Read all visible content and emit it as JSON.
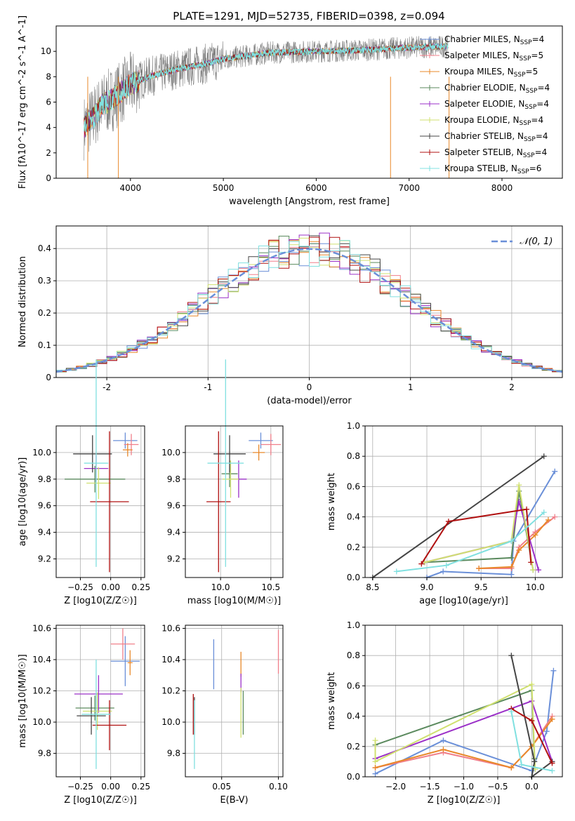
{
  "figure": {
    "title": "PLATE=1291, MJD=52735, FIBERID=0398, z=0.094"
  },
  "colors": {
    "chabrier_miles": "#6a8fd8",
    "salpeter_miles": "#f07f8a",
    "kroupa_miles": "#e8882a",
    "chabrier_elodie": "#5b8a5e",
    "salpeter_elodie": "#9b30c8",
    "kroupa_elodie": "#d0e070",
    "chabrier_stelib": "#444444",
    "salpeter_stelib": "#b01010",
    "kroupa_stelib": "#80e0e0",
    "data": "#808080",
    "normal": "#6a8fd8"
  },
  "chart_data": [
    {
      "id": "spectrum",
      "type": "line",
      "title": "PLATE=1291, MJD=52735, FIBERID=0398, z=0.094",
      "xlabel": "wavelength [Angstrom, rest frame]",
      "ylabel": "Flux [fλ10^-17 erg cm^-2 s^-1 A^-1]",
      "xlim": [
        3200,
        8650
      ],
      "ylim": [
        0,
        12
      ],
      "xticks": [
        "4000",
        "5000",
        "6000",
        "7000",
        "8000"
      ],
      "yticks": [
        "0",
        "2",
        "4",
        "6",
        "8",
        "10"
      ],
      "legend_loc": "right",
      "legend": [
        "Chabrier MILES, NSSP=4",
        "Salpeter MILES, NSSP=5",
        "Kroupa MILES, NSSP=5",
        "Chabrier ELODIE, NSSP=4",
        "Salpeter ELODIE, NSSP=4",
        "Kroupa ELODIE, NSSP=4",
        "Chabrier STELIB, NSSP=4",
        "Salpeter STELIB, NSSP=4",
        "Kroupa STELIB, NSSP=6"
      ],
      "continuum": {
        "x": [
          3500,
          3600,
          3700,
          3800,
          3900,
          4000,
          4200,
          4500,
          4800,
          5000,
          5200,
          5500,
          6000,
          6500,
          7000,
          7400
        ],
        "y": [
          4.0,
          4.8,
          5.8,
          6.2,
          6.8,
          7.4,
          8.0,
          8.6,
          9.0,
          9.4,
          9.6,
          9.9,
          10.0,
          10.1,
          10.3,
          10.4
        ]
      },
      "dips": [
        {
          "x": 3540,
          "y": 0
        },
        {
          "x": 3870,
          "y": 0
        },
        {
          "x": 6800,
          "y": 0
        },
        {
          "x": 7430,
          "y": 0
        }
      ]
    },
    {
      "id": "residuals",
      "type": "line",
      "xlabel": "(data-model)/error",
      "ylabel": "Normed distribution",
      "xlim": [
        -2.5,
        2.5
      ],
      "ylim": [
        0,
        0.47
      ],
      "xticks": [
        -2,
        -1,
        0,
        1,
        2
      ],
      "yticks": [
        0.0,
        0.1,
        0.2,
        0.3,
        0.4
      ],
      "legend": [
        "𝒩(0, 1)"
      ],
      "legend_loc": "top-right",
      "grid": true
    },
    {
      "id": "age_vs_z",
      "type": "scatter",
      "xlabel": "Z [log10(Z/Z☉)]",
      "ylabel": "age [log10(age/yr)]",
      "xlim": [
        -0.45,
        0.28
      ],
      "ylim": [
        9.06,
        10.2
      ],
      "xticks": [
        "−0.25",
        "0.00",
        "0.25"
      ],
      "yticks": [
        "9.2",
        "9.4",
        "9.6",
        "9.8",
        "10.0"
      ],
      "grid": true,
      "points": [
        {
          "series": "chabrier_miles",
          "x": 0.12,
          "y": 10.09,
          "xerr": 0.1,
          "yerr": 0.06
        },
        {
          "series": "salpeter_miles",
          "x": 0.17,
          "y": 10.06,
          "xerr": 0.06,
          "yerr": 0.08
        },
        {
          "series": "kroupa_miles",
          "x": 0.14,
          "y": 10.02,
          "xerr": 0.04,
          "yerr": 0.05
        },
        {
          "series": "chabrier_elodie",
          "x": -0.13,
          "y": 9.8,
          "xerr": 0.25,
          "yerr": 0.1
        },
        {
          "series": "salpeter_elodie",
          "x": -0.12,
          "y": 9.88,
          "xerr": 0.1,
          "yerr": 0.1
        },
        {
          "series": "kroupa_elodie",
          "x": -0.1,
          "y": 9.77,
          "xerr": 0.1,
          "yerr": 0.12
        },
        {
          "series": "chabrier_stelib",
          "x": -0.15,
          "y": 9.99,
          "xerr": 0.16,
          "yerr": 0.14
        },
        {
          "series": "salpeter_stelib",
          "x": -0.01,
          "y": 9.63,
          "xerr": 0.16,
          "yerr": 0.53
        },
        {
          "series": "kroupa_stelib",
          "x": -0.12,
          "y": 9.92,
          "xerr": 0.1,
          "yerr": 0.78
        }
      ]
    },
    {
      "id": "age_vs_mass",
      "type": "scatter",
      "xlabel": "mass [log10(M/M☉)]",
      "ylabel": "",
      "xlim": [
        9.65,
        10.62
      ],
      "ylim": [
        9.06,
        10.2
      ],
      "xticks": [
        "10.0",
        "10.5"
      ],
      "yticks": [
        "9.2",
        "9.4",
        "9.6",
        "9.8",
        "10.0"
      ],
      "grid": true,
      "points": [
        {
          "series": "chabrier_miles",
          "x": 10.4,
          "y": 10.09,
          "xerr": 0.12,
          "yerr": 0.06
        },
        {
          "series": "salpeter_miles",
          "x": 10.5,
          "y": 10.06,
          "xerr": 0.1,
          "yerr": 0.08
        },
        {
          "series": "kroupa_miles",
          "x": 10.38,
          "y": 10.0,
          "xerr": 0.06,
          "yerr": 0.06
        },
        {
          "series": "chabrier_elodie",
          "x": 10.09,
          "y": 9.84,
          "xerr": 0.08,
          "yerr": 0.1
        },
        {
          "series": "salpeter_elodie",
          "x": 10.18,
          "y": 9.8,
          "xerr": 0.08,
          "yerr": 0.14
        },
        {
          "series": "kroupa_elodie",
          "x": 10.1,
          "y": 9.8,
          "xerr": 0.08,
          "yerr": 0.14
        },
        {
          "series": "chabrier_stelib",
          "x": 10.09,
          "y": 9.99,
          "xerr": 0.16,
          "yerr": 0.14
        },
        {
          "series": "salpeter_stelib",
          "x": 9.98,
          "y": 9.63,
          "xerr": 0.12,
          "yerr": 0.53
        },
        {
          "series": "kroupa_stelib",
          "x": 10.05,
          "y": 9.92,
          "xerr": 0.18,
          "yerr": 0.78
        }
      ]
    },
    {
      "id": "mass_weight_vs_age",
      "type": "line",
      "xlabel": "age [log10(age/yr)]",
      "ylabel": "mass weight",
      "xlim": [
        8.43,
        10.25
      ],
      "ylim": [
        0,
        1.0
      ],
      "xticks": [
        "8.5",
        "9.0",
        "9.5",
        "10.0"
      ],
      "yticks": [
        "0.0",
        "0.2",
        "0.4",
        "0.6",
        "0.8",
        "1.0"
      ],
      "grid": true,
      "series": [
        {
          "key": "chabrier_miles",
          "x": [
            9.0,
            9.15,
            9.78,
            9.8,
            10.18
          ],
          "y": [
            0.0,
            0.04,
            0.02,
            0.24,
            0.7
          ]
        },
        {
          "key": "salpeter_miles",
          "x": [
            9.48,
            9.78,
            9.85,
            10.0,
            10.18
          ],
          "y": [
            0.06,
            0.06,
            0.2,
            0.3,
            0.4
          ]
        },
        {
          "key": "kroupa_miles",
          "x": [
            9.48,
            9.78,
            9.85,
            10.0,
            10.12
          ],
          "y": [
            0.06,
            0.07,
            0.18,
            0.28,
            0.38
          ]
        },
        {
          "key": "chabrier_elodie",
          "x": [
            8.98,
            9.78,
            9.85,
            9.98
          ],
          "y": [
            0.1,
            0.13,
            0.57,
            0.05
          ]
        },
        {
          "key": "salpeter_elodie",
          "x": [
            8.98,
            9.78,
            9.85,
            10.03
          ],
          "y": [
            0.1,
            0.24,
            0.5,
            0.05
          ]
        },
        {
          "key": "kroupa_elodie",
          "x": [
            8.98,
            9.78,
            9.85,
            9.98
          ],
          "y": [
            0.1,
            0.24,
            0.61,
            0.05
          ]
        },
        {
          "key": "chabrier_stelib",
          "x": [
            8.5,
            10.08
          ],
          "y": [
            0.0,
            0.8
          ]
        },
        {
          "key": "salpeter_stelib",
          "x": [
            8.95,
            9.2,
            9.92,
            9.96
          ],
          "y": [
            0.09,
            0.37,
            0.45,
            0.1
          ]
        },
        {
          "key": "kroupa_stelib",
          "x": [
            8.72,
            9.18,
            9.78,
            10.08
          ],
          "y": [
            0.04,
            0.08,
            0.24,
            0.43
          ]
        }
      ]
    },
    {
      "id": "mass_vs_z",
      "type": "scatter",
      "xlabel": "Z [log10(Z/Z☉)]",
      "ylabel": "mass [log10(M/M☉)]",
      "xlim": [
        -0.45,
        0.28
      ],
      "ylim": [
        9.65,
        10.62
      ],
      "xticks": [
        "−0.25",
        "0.00",
        "0.25"
      ],
      "yticks": [
        "9.8",
        "10.0",
        "10.2",
        "10.4",
        "10.6"
      ],
      "grid": true,
      "points": [
        {
          "series": "chabrier_miles",
          "x": 0.12,
          "y": 10.39,
          "xerr": 0.12,
          "yerr": 0.16
        },
        {
          "series": "salpeter_miles",
          "x": 0.1,
          "y": 10.5,
          "xerr": 0.1,
          "yerr": 0.1
        },
        {
          "series": "kroupa_miles",
          "x": 0.16,
          "y": 10.38,
          "xerr": 0.02,
          "yerr": 0.08
        },
        {
          "series": "chabrier_elodie",
          "x": -0.13,
          "y": 10.09,
          "xerr": 0.16,
          "yerr": 0.08
        },
        {
          "series": "salpeter_elodie",
          "x": -0.1,
          "y": 10.18,
          "xerr": 0.2,
          "yerr": 0.12
        },
        {
          "series": "kroupa_elodie",
          "x": -0.11,
          "y": 10.07,
          "xerr": 0.12,
          "yerr": 0.12
        },
        {
          "series": "chabrier_stelib",
          "x": -0.16,
          "y": 10.04,
          "xerr": 0.12,
          "yerr": 0.12
        },
        {
          "series": "salpeter_stelib",
          "x": -0.01,
          "y": 9.98,
          "xerr": 0.14,
          "yerr": 0.16
        },
        {
          "series": "kroupa_stelib",
          "x": -0.12,
          "y": 10.05,
          "xerr": 0.12,
          "yerr": 0.35
        }
      ]
    },
    {
      "id": "mass_vs_ebv",
      "type": "scatter",
      "xlabel": "E(B-V)",
      "ylabel": "",
      "xlim": [
        0.018,
        0.104
      ],
      "ylim": [
        9.65,
        10.62
      ],
      "xticks": [
        "0.05",
        "0.10"
      ],
      "yticks": [
        "9.8",
        "10.0",
        "10.2",
        "10.4",
        "10.6"
      ],
      "grid": true,
      "points": [
        {
          "series": "chabrier_miles",
          "x": 0.043,
          "y": 10.37,
          "yerr": 0.16
        },
        {
          "series": "salpeter_miles",
          "x": 0.1,
          "y": 10.45,
          "yerr": 0.14
        },
        {
          "series": "kroupa_miles",
          "x": 0.067,
          "y": 10.37,
          "yerr": 0.08
        },
        {
          "series": "chabrier_elodie",
          "x": 0.069,
          "y": 10.06,
          "yerr": 0.14
        },
        {
          "series": "salpeter_elodie",
          "x": 0.067,
          "y": 10.25,
          "yerr": 0.06
        },
        {
          "series": "kroupa_elodie",
          "x": 0.067,
          "y": 10.06,
          "yerr": 0.16
        },
        {
          "series": "chabrier_stelib",
          "x": 0.026,
          "y": 10.04,
          "yerr": 0.12
        },
        {
          "series": "salpeter_stelib",
          "x": 0.025,
          "y": 10.05,
          "yerr": 0.13
        },
        {
          "series": "kroupa_stelib",
          "x": 0.026,
          "y": 9.92,
          "yerr": 0.22
        }
      ]
    },
    {
      "id": "mass_weight_vs_z",
      "type": "line",
      "xlabel": "Z [log10(Z/Z☉)]",
      "ylabel": "mass weight",
      "xlim": [
        -2.45,
        0.45
      ],
      "ylim": [
        0,
        1.0
      ],
      "xticks": [
        "−2.0",
        "−1.5",
        "−1.0",
        "−0.5",
        "0.0"
      ],
      "yticks": [
        "0.0",
        "0.2",
        "0.4",
        "0.6",
        "0.8",
        "1.0"
      ],
      "grid": true,
      "series": [
        {
          "key": "chabrier_miles",
          "x": [
            -2.3,
            -1.3,
            0.0,
            0.22,
            0.32
          ],
          "y": [
            0.02,
            0.24,
            0.04,
            0.3,
            0.7
          ]
        },
        {
          "key": "salpeter_miles",
          "x": [
            -2.3,
            -1.3,
            -0.3,
            0.0,
            0.3
          ],
          "y": [
            0.06,
            0.16,
            0.06,
            0.2,
            0.4
          ]
        },
        {
          "key": "kroupa_miles",
          "x": [
            -2.3,
            -1.3,
            -0.3,
            0.0,
            0.3
          ],
          "y": [
            0.06,
            0.18,
            0.06,
            0.2,
            0.38
          ]
        },
        {
          "key": "chabrier_elodie",
          "x": [
            -2.3,
            0.0,
            0.04
          ],
          "y": [
            0.21,
            0.57,
            0.12
          ]
        },
        {
          "key": "salpeter_elodie",
          "x": [
            -2.3,
            0.0,
            0.3
          ],
          "y": [
            0.12,
            0.5,
            0.1
          ]
        },
        {
          "key": "kroupa_elodie",
          "x": [
            -2.3,
            -2.3,
            0.0,
            0.05
          ],
          "y": [
            0.24,
            0.1,
            0.61,
            0.05
          ]
        },
        {
          "key": "chabrier_stelib",
          "x": [
            -0.3,
            0.04,
            0.0,
            0.3
          ],
          "y": [
            0.8,
            0.1,
            0.0,
            0.1
          ]
        },
        {
          "key": "salpeter_stelib",
          "x": [
            -0.3,
            0.0,
            0.3
          ],
          "y": [
            0.45,
            0.37,
            0.09
          ]
        },
        {
          "key": "kroupa_stelib",
          "x": [
            -0.3,
            -0.15,
            0.3
          ],
          "y": [
            0.43,
            0.08,
            0.04
          ]
        }
      ]
    }
  ]
}
